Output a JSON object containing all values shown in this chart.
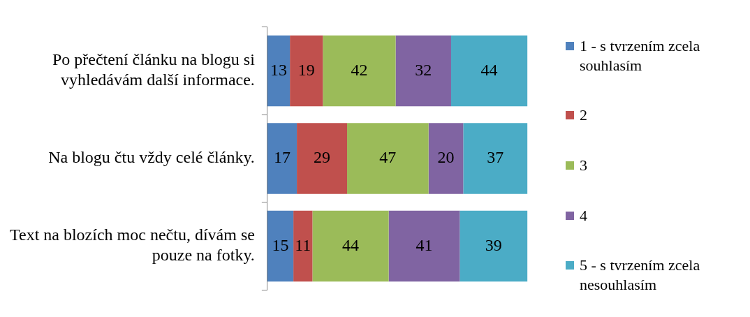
{
  "chart_data": {
    "type": "bar",
    "orientation": "horizontal",
    "stacked": true,
    "data_labels": true,
    "grid": false,
    "legend": "right",
    "categories": [
      "Po přečtení článku na blogu si vyhledávám další informace.",
      "Na blogu čtu vždy celé články.",
      "Text na blozích moc nečtu, dívám se pouze na fotky."
    ],
    "series": [
      {
        "name": "1 - s tvrzením zcela souhlasím",
        "color": "#4f81bd",
        "values": [
          13,
          17,
          15
        ]
      },
      {
        "name": "2",
        "color": "#c0504d",
        "values": [
          19,
          29,
          11
        ]
      },
      {
        "name": "3",
        "color": "#9bbb59",
        "values": [
          42,
          47,
          44
        ]
      },
      {
        "name": "4",
        "color": "#8064a2",
        "values": [
          32,
          20,
          41
        ]
      },
      {
        "name": "5 - s tvrzením zcela nesouhlasím",
        "color": "#4bacc6",
        "values": [
          44,
          37,
          39
        ]
      }
    ]
  }
}
